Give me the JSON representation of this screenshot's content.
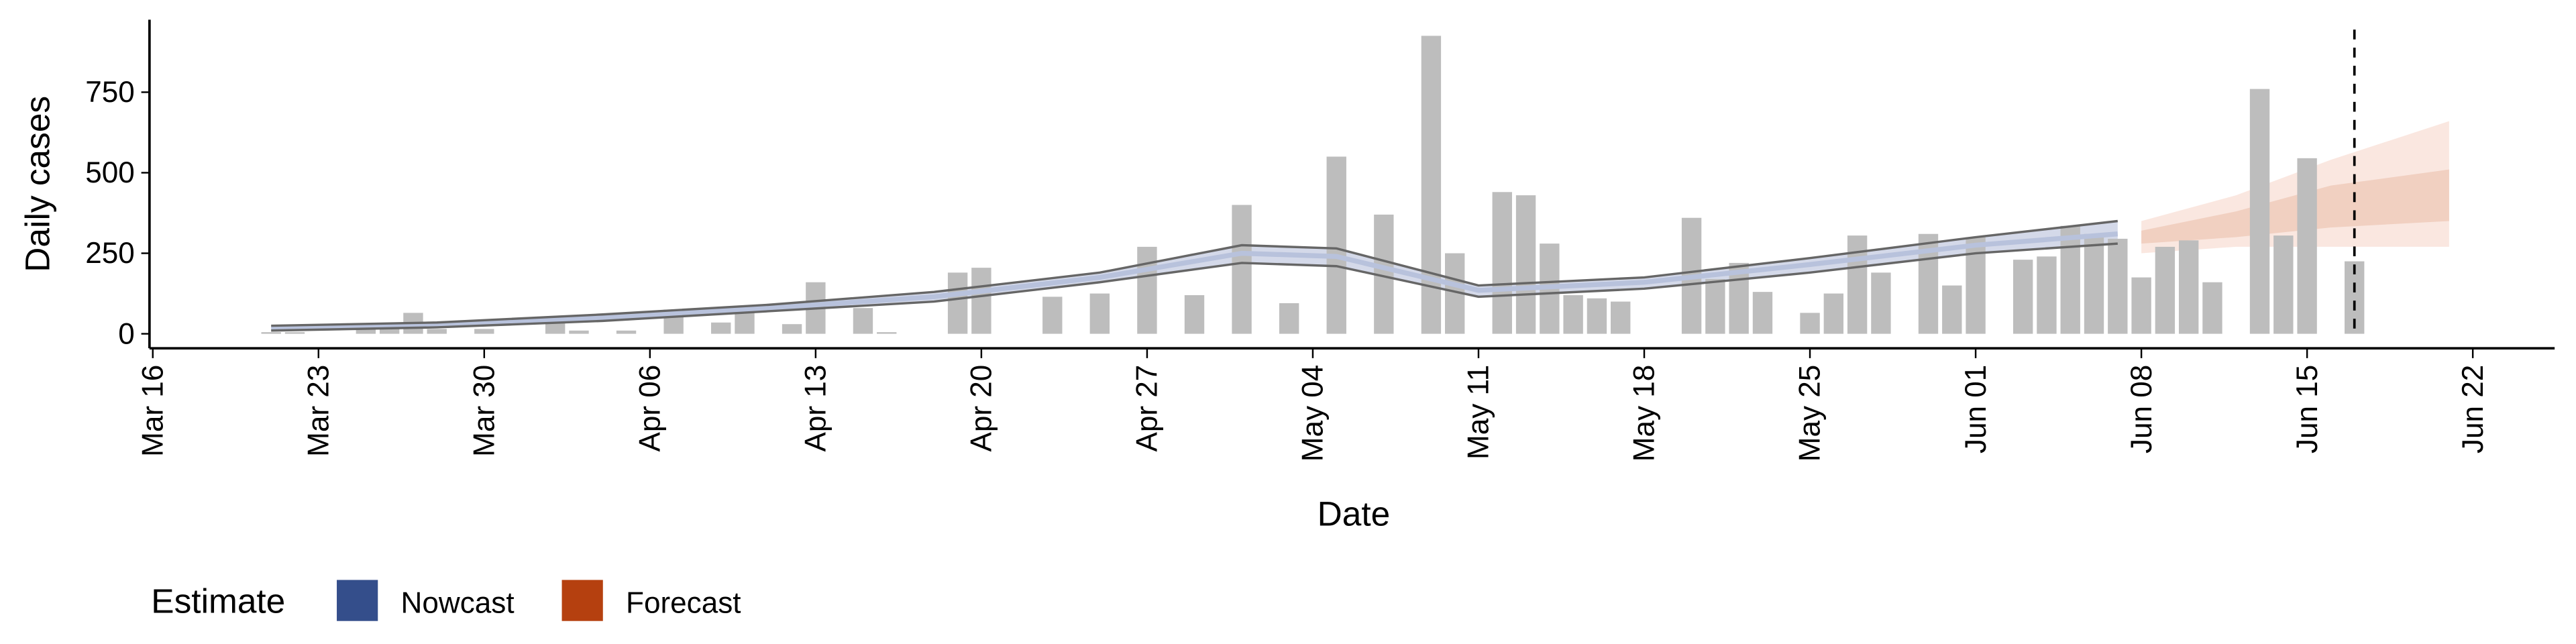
{
  "chart_data": {
    "type": "bar",
    "x_label": "Date",
    "y_label": "Daily cases",
    "color": "#bdbdbd",
    "x": [
      "03-21",
      "03-22",
      "03-25",
      "03-26",
      "03-27",
      "03-28",
      "03-30",
      "04-02",
      "04-03",
      "04-05",
      "04-07",
      "04-09",
      "04-10",
      "04-12",
      "04-13",
      "04-15",
      "04-16",
      "04-19",
      "04-20",
      "04-23",
      "04-25",
      "04-27",
      "04-29",
      "05-01",
      "05-03",
      "05-05",
      "05-07",
      "05-09",
      "05-10",
      "05-12",
      "05-13",
      "05-14",
      "05-15",
      "05-16",
      "05-17",
      "05-20",
      "05-21",
      "05-22",
      "05-23",
      "05-25",
      "05-26",
      "05-27",
      "05-28",
      "05-30",
      "05-31",
      "06-01",
      "06-03",
      "06-04",
      "06-05",
      "06-06",
      "06-07",
      "06-08",
      "06-09",
      "06-10",
      "06-11",
      "06-13",
      "06-14",
      "06-15",
      "06-17"
    ],
    "values": [
      5,
      5,
      20,
      30,
      65,
      15,
      15,
      50,
      10,
      10,
      75,
      35,
      65,
      30,
      160,
      80,
      5,
      190,
      205,
      115,
      125,
      270,
      120,
      400,
      95,
      550,
      370,
      925,
      250,
      440,
      430,
      280,
      120,
      110,
      100,
      360,
      170,
      220,
      130,
      65,
      125,
      305,
      190,
      310,
      150,
      300,
      230,
      240,
      335,
      310,
      295,
      175,
      270,
      290,
      160,
      760,
      305,
      545,
      225
    ],
    "xlim": [
      "03-16",
      "06-24"
    ],
    "xticks": [
      {
        "value": "03-16",
        "label": "Mar 16"
      },
      {
        "value": "03-23",
        "label": "Mar 23"
      },
      {
        "value": "03-30",
        "label": "Mar 30"
      },
      {
        "value": "04-06",
        "label": "Apr 06"
      },
      {
        "value": "04-13",
        "label": "Apr 13"
      },
      {
        "value": "04-20",
        "label": "Apr 20"
      },
      {
        "value": "04-27",
        "label": "Apr 27"
      },
      {
        "value": "05-04",
        "label": "May 04"
      },
      {
        "value": "05-11",
        "label": "May 11"
      },
      {
        "value": "05-18",
        "label": "May 18"
      },
      {
        "value": "05-25",
        "label": "May 25"
      },
      {
        "value": "06-01",
        "label": "Jun 01"
      },
      {
        "value": "06-08",
        "label": "Jun 08"
      },
      {
        "value": "06-15",
        "label": "Jun 15"
      },
      {
        "value": "06-22",
        "label": "Jun 22"
      }
    ],
    "ylim": [
      -45,
      975
    ],
    "yticks": [
      0,
      250,
      500,
      750
    ],
    "date_line": "06-17",
    "legend_title": "Estimate",
    "nowcast": {
      "name": "Nowcast",
      "color": "#344e8b",
      "band_color": "#c9d0e3",
      "bound_color": "#666666",
      "x": [
        "03-21",
        "03-28",
        "04-04",
        "04-11",
        "04-18",
        "04-25",
        "05-01",
        "05-05",
        "05-11",
        "05-18",
        "05-25",
        "06-01",
        "06-07"
      ],
      "median": [
        18,
        28,
        50,
        80,
        115,
        175,
        250,
        240,
        135,
        160,
        215,
        275,
        310
      ],
      "lower": [
        10,
        20,
        40,
        70,
        100,
        160,
        220,
        210,
        115,
        140,
        190,
        250,
        280
      ],
      "upper": [
        25,
        35,
        60,
        90,
        130,
        190,
        275,
        265,
        150,
        175,
        235,
        300,
        350
      ]
    },
    "forecast": {
      "name": "Forecast",
      "color": "#b5400f",
      "outer_color": "#f9e3da",
      "inner_color": "#efcbbb",
      "x": [
        "06-08",
        "06-12",
        "06-16",
        "06-21"
      ],
      "lower90": [
        250,
        270,
        270,
        270
      ],
      "upper90": [
        350,
        430,
        540,
        660
      ],
      "lower50": [
        280,
        300,
        330,
        350
      ],
      "upper50": [
        320,
        380,
        460,
        510
      ]
    }
  }
}
